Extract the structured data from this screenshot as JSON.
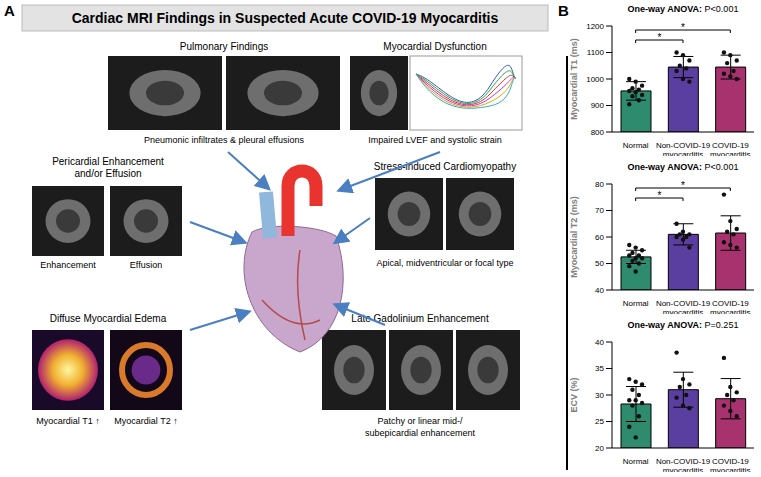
{
  "panel_a": {
    "label": "A",
    "title": "Cardiac MRI Findings in Suspected Acute COVID-19 Myocarditis",
    "findings": [
      {
        "title_lines": [
          "Pulmonary Findings"
        ],
        "caption_lines": [
          "Pneumonic infiltrates & pleural effusions"
        ]
      },
      {
        "title_lines": [
          "Myocardial Dysfunction"
        ],
        "caption_lines": [
          "Impaired LVEF and systolic strain"
        ]
      },
      {
        "title_lines": [
          "Pericardial Enhancement",
          "and/or Effusion"
        ],
        "image_labels": [
          "Enhancement",
          "Effusion"
        ]
      },
      {
        "title_lines": [
          "Stress-induced Cardiomyopathy"
        ],
        "caption_lines": [
          "Apical, midventricular or focal type"
        ]
      },
      {
        "title_lines": [
          "Diffuse Myocardial Edema"
        ],
        "image_labels": [
          "Myocardial T1 ↑",
          "Myocardial T2 ↑"
        ]
      },
      {
        "title_lines": [
          "Late Gadolinium Enhancement"
        ],
        "caption_lines": [
          "Patchy or linear mid-/",
          "subepicardial enhancement"
        ]
      }
    ]
  },
  "panel_b_label": "B",
  "chart_data": [
    {
      "type": "bar",
      "title": "One-way ANOVA: P<0.001",
      "y_label": "Myocardial T1 (ms)",
      "categories": [
        "Normal",
        "Non-COVID-19 myocarditis",
        "COVID-19 myocarditis"
      ],
      "values": [
        955,
        1045,
        1045
      ],
      "errors": [
        35,
        40,
        45
      ],
      "points": [
        [
          1000,
          990,
          975,
          965,
          960,
          955,
          950,
          940,
          935,
          920,
          905
        ],
        [
          1100,
          1090,
          1070,
          1050,
          1040,
          1030,
          1000,
          990
        ],
        [
          1100,
          1090,
          1070,
          1060,
          1030,
          1020,
          1010,
          1000
        ]
      ],
      "colors": [
        "#2e8b6e",
        "#5b3fa0",
        "#a8326e"
      ],
      "ylim": [
        800,
        1200
      ],
      "yticks": [
        800,
        900,
        1000,
        1100,
        1200
      ],
      "significance": [
        {
          "from": 0,
          "to": 1,
          "label": "*"
        },
        {
          "from": 0,
          "to": 2,
          "label": "*"
        }
      ]
    },
    {
      "type": "bar",
      "title": "One-way ANOVA: P<0.001",
      "y_label": "Myocardial T2 (ms)",
      "categories": [
        "Normal",
        "Non-COVID-19 myocarditis",
        "COVID-19 myocarditis"
      ],
      "values": [
        52.5,
        61,
        61.5
      ],
      "errors": [
        2.5,
        4,
        6.5
      ],
      "points": [
        [
          57,
          56,
          55,
          54,
          53,
          53,
          52,
          52,
          51,
          50,
          49,
          47
        ],
        [
          65,
          62,
          61,
          61,
          60,
          60,
          59,
          56
        ],
        [
          76,
          66,
          63,
          62,
          61,
          58,
          57,
          56
        ]
      ],
      "colors": [
        "#2e8b6e",
        "#5b3fa0",
        "#a8326e"
      ],
      "ylim": [
        40,
        80
      ],
      "yticks": [
        40,
        50,
        60,
        70,
        80
      ],
      "significance": [
        {
          "from": 0,
          "to": 1,
          "label": "*"
        },
        {
          "from": 0,
          "to": 2,
          "label": "*"
        }
      ]
    },
    {
      "type": "bar",
      "title": "One-way ANOVA: P=0.251",
      "y_label": "ECV (%)",
      "categories": [
        "Normal",
        "Non-COVID-19 myocarditis",
        "COVID-19 myocarditis"
      ],
      "values": [
        28.3,
        31,
        29.3
      ],
      "errors": [
        3.3,
        3.3,
        3.8
      ],
      "points": [
        [
          33,
          32.5,
          32,
          31,
          30,
          29,
          29,
          28.5,
          28,
          26,
          24,
          22
        ],
        [
          38,
          33,
          32,
          31.5,
          30,
          29.5,
          28,
          27.5
        ],
        [
          37,
          31.5,
          30.5,
          30,
          29,
          28,
          27,
          26
        ]
      ],
      "colors": [
        "#2e8b6e",
        "#5b3fa0",
        "#a8326e"
      ],
      "ylim": [
        20,
        40
      ],
      "yticks": [
        20,
        25,
        30,
        35,
        40
      ],
      "significance": []
    }
  ]
}
